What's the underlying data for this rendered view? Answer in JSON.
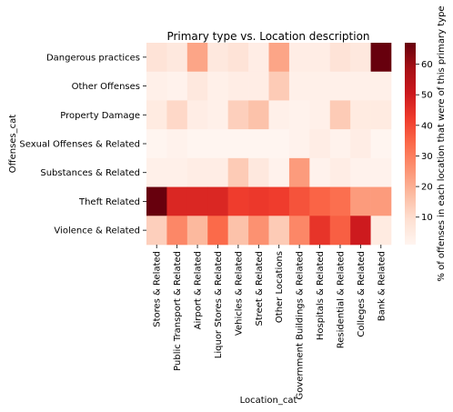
{
  "chart_data": {
    "type": "heatmap",
    "title": "Primary type vs. Location description",
    "xlabel": "Location_cat",
    "ylabel": "Offenses_cat",
    "x_categories": [
      "Stores & Related",
      "Public Transport & Related",
      "Airport & Related",
      "Liquor Stores & Related",
      "Vehicles & Related",
      "Street & Related",
      "Other Locations",
      "Government Buildings & Related",
      "Hospitals & Related",
      "Residential & Related",
      "Colleges & Related",
      "Bank & Related"
    ],
    "y_categories": [
      "Dangerous practices",
      "Other Offenses",
      "Property Damage",
      "Sexual Offenses & Related",
      "Substances & Related",
      "Theft Related",
      "Violence & Related"
    ],
    "values": [
      [
        8,
        6,
        22,
        6,
        8,
        4,
        22,
        4,
        4,
        8,
        6,
        67
      ],
      [
        3,
        2,
        6,
        3,
        4,
        4,
        14,
        3,
        3,
        3,
        3,
        3
      ],
      [
        5,
        11,
        4,
        3,
        13,
        16,
        3,
        2,
        3,
        14,
        5,
        5
      ],
      [
        1,
        2,
        1,
        1,
        1,
        1,
        1,
        2,
        4,
        2,
        4,
        1
      ],
      [
        3,
        3,
        4,
        4,
        14,
        6,
        2,
        24,
        2,
        4,
        2,
        2
      ],
      [
        67,
        47,
        47,
        47,
        42,
        43,
        42,
        38,
        35,
        33,
        24,
        24
      ],
      [
        13,
        28,
        18,
        34,
        16,
        26,
        14,
        28,
        44,
        36,
        50,
        5
      ]
    ],
    "colorbar": {
      "label": "% of offenses in each location that were of this primary type",
      "ticks": [
        10,
        20,
        30,
        40,
        50,
        60
      ],
      "vmin": 1,
      "vmax": 67,
      "colormap": "Reds",
      "colors": [
        "#fff5f0",
        "#fee0d2",
        "#fcbba1",
        "#fc9272",
        "#fb6a4a",
        "#ef3b2c",
        "#cb181d",
        "#a50f15",
        "#67000d"
      ]
    }
  }
}
